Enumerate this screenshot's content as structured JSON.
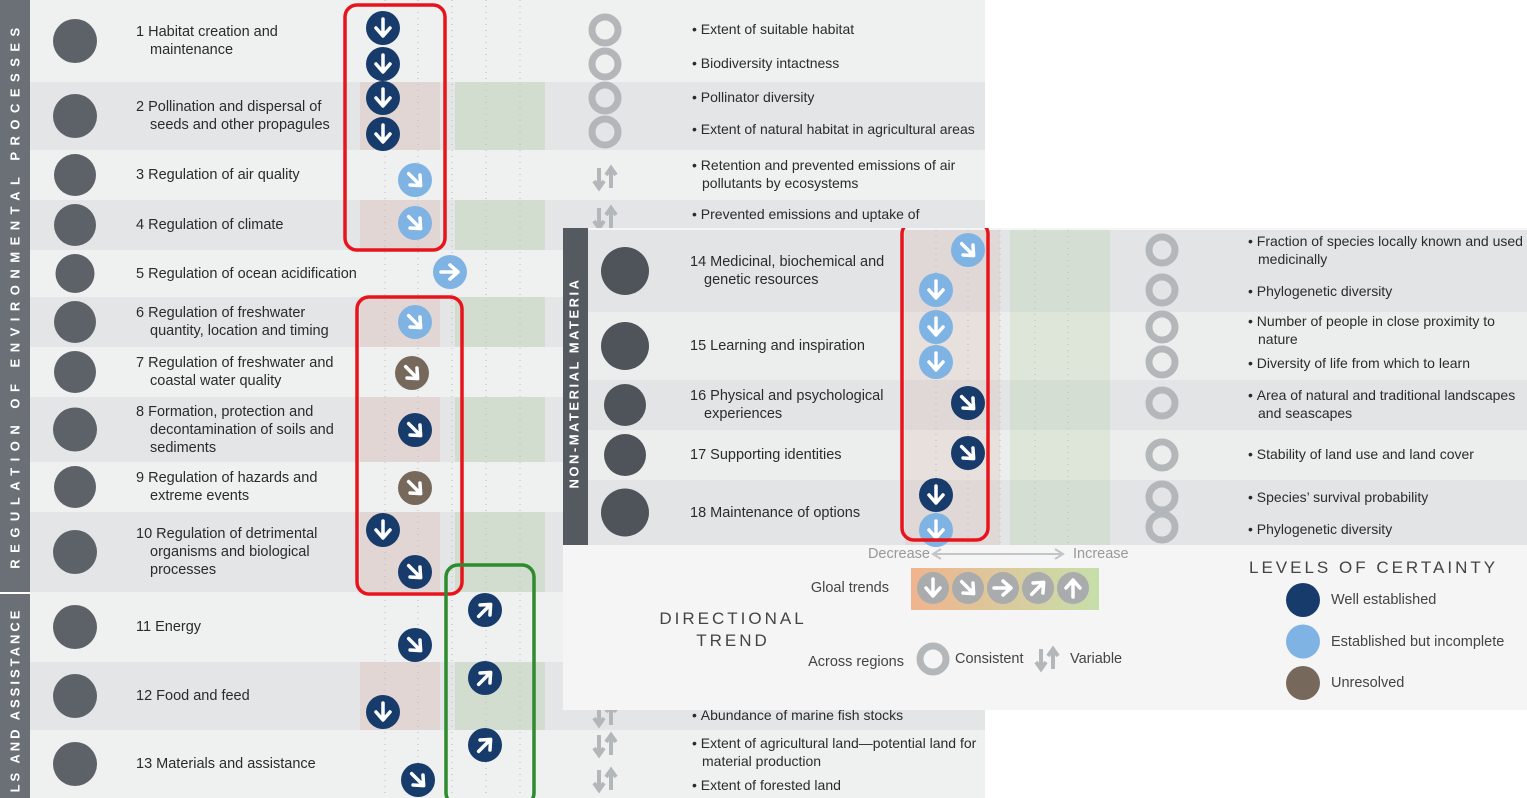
{
  "left_panel": {
    "section_labels": [
      "REGULATION OF ENVIRONMENTAL PROCESSES",
      "LS AND ASSISTANCE"
    ],
    "rows": [
      {
        "label": "1 Habitat creation and maintenance",
        "indicators": [
          "Extent of suitable habitat",
          "Biodiversity intactness"
        ]
      },
      {
        "label": "2 Pollination and dispersal of seeds and other propagules",
        "indicators": [
          "Pollinator diversity",
          "Extent of natural habitat in agricultural areas"
        ]
      },
      {
        "label": "3 Regulation of air quality",
        "indicators": [
          "Retention and prevented emissions of air pollutants by ecosystems"
        ]
      },
      {
        "label": "4 Regulation of climate",
        "indicators": [
          "Prevented emissions and uptake of"
        ]
      },
      {
        "label": "5 Regulation of ocean acidification"
      },
      {
        "label": "6 Regulation of freshwater quantity, location and timing"
      },
      {
        "label": "7 Regulation of freshwater and coastal water quality"
      },
      {
        "label": "8 Formation, protection and decontamination of soils and sediments"
      },
      {
        "label": "9 Regulation of hazards and extreme events"
      },
      {
        "label": "10 Regulation of detrimental organisms and biological processes"
      },
      {
        "label": "11 Energy"
      },
      {
        "label": "12 Food and feed",
        "indicators": [
          "Abundance of marine fish stocks"
        ]
      },
      {
        "label": "13 Materials and assistance",
        "indicators": [
          "Extent of agricultural land—potential land for material production",
          "Extent of forested land"
        ]
      }
    ]
  },
  "right_panel": {
    "section_label": "NON-MATERIAL MATERIA",
    "rows": [
      {
        "label": "14 Medicinal, biochemical and genetic resources",
        "indicators": [
          "Fraction of species locally known and used medicinally",
          "Phylogenetic diversity"
        ]
      },
      {
        "label": "15 Learning and inspiration",
        "indicators": [
          "Number of people in close proximity to nature",
          "Diversity of life from which to learn"
        ]
      },
      {
        "label": "16 Physical and psychological experiences",
        "indicators": [
          "Area of natural and traditional landscapes and seascapes"
        ]
      },
      {
        "label": "17 Supporting identities",
        "indicators": [
          "Stability of land use and land cover"
        ]
      },
      {
        "label": "18 Maintenance of options",
        "indicators": [
          "Species’ survival probability",
          "Phylogenetic diversity"
        ]
      }
    ],
    "legend": {
      "decrease": "Decrease",
      "increase": "Increase",
      "global_trends": "Gloal trends",
      "directional_trend": [
        "DIRECTIONAL",
        "TREND"
      ],
      "across_regions": "Across regions",
      "consistent": "Consistent",
      "variable": "Variable",
      "certainty_title": "LEVELS OF CERTAINTY",
      "certainty": [
        "Well established",
        "Established but incomplete",
        "Unresolved"
      ]
    }
  }
}
